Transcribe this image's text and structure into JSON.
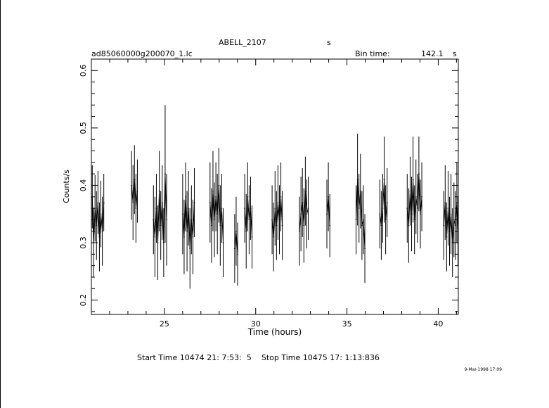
{
  "header": {
    "object_name": "ABELL_2107",
    "object_unit": "s",
    "file_name": "ad85060000g200070_1.lc",
    "bin_label": "Bin time:",
    "bin_value": "142.1",
    "bin_unit": "s"
  },
  "footer": {
    "time_range": "Start Time 10474 21: 7:53:  5    Stop Time 10475 17: 1:13:836",
    "timestamp": "9-Mar-1998 17:09"
  },
  "chart_data": {
    "type": "line",
    "title": "ABELL_2107",
    "xlabel": "Time (hours)",
    "ylabel": "Counts/s",
    "xlim": [
      21.0,
      41.1
    ],
    "ylim": [
      0.175,
      0.62
    ],
    "xticks": [
      25,
      30,
      35,
      40
    ],
    "xtick_labels": [
      "25",
      "30",
      "35",
      "40"
    ],
    "yticks": [
      0.2,
      0.3,
      0.4,
      0.5,
      0.6
    ],
    "ytick_labels": [
      "0.2",
      "0.3",
      "0.4",
      "0.5",
      "0.6"
    ],
    "grid": false,
    "series": [
      {
        "segments": [
          {
            "x": [
              21.05,
              21.12,
              21.2,
              21.28,
              21.36,
              21.44,
              21.52,
              21.6,
              21.68
            ],
            "y": [
              0.38,
              0.3,
              0.36,
              0.33,
              0.37,
              0.31,
              0.35,
              0.32,
              0.37
            ],
            "err": [
              0.055,
              0.06,
              0.058,
              0.06,
              0.055,
              0.06,
              0.058,
              0.06,
              0.05
            ]
          },
          {
            "x": [
              23.2,
              23.28,
              23.36,
              23.44,
              23.52
            ],
            "y": [
              0.4,
              0.37,
              0.41,
              0.36,
              0.39
            ],
            "err": [
              0.06,
              0.065,
              0.06,
              0.06,
              0.055
            ]
          },
          {
            "x": [
              24.4,
              24.48,
              24.56,
              24.64,
              24.72,
              24.8,
              24.88,
              24.96,
              25.04,
              25.12
            ],
            "y": [
              0.34,
              0.31,
              0.36,
              0.3,
              0.39,
              0.33,
              0.37,
              0.3,
              0.42,
              0.34
            ],
            "err": [
              0.06,
              0.07,
              0.06,
              0.065,
              0.07,
              0.06,
              0.065,
              0.06,
              0.12,
              0.08
            ]
          },
          {
            "x": [
              26.0,
              26.08,
              26.16,
              26.24,
              26.32,
              26.4,
              26.48,
              26.56,
              26.64
            ],
            "y": [
              0.35,
              0.31,
              0.38,
              0.32,
              0.36,
              0.29,
              0.34,
              0.31,
              0.37
            ],
            "err": [
              0.07,
              0.065,
              0.06,
              0.07,
              0.065,
              0.07,
              0.06,
              0.065,
              0.06
            ]
          },
          {
            "x": [
              27.5,
              27.58,
              27.66,
              27.74,
              27.82,
              27.9,
              27.98,
              28.06,
              28.14,
              28.22
            ],
            "y": [
              0.37,
              0.33,
              0.39,
              0.34,
              0.38,
              0.35,
              0.4,
              0.33,
              0.36,
              0.3
            ],
            "err": [
              0.07,
              0.065,
              0.07,
              0.065,
              0.06,
              0.07,
              0.065,
              0.07,
              0.06,
              0.06
            ]
          },
          {
            "x": [
              28.85,
              28.93,
              29.01
            ],
            "y": [
              0.29,
              0.32,
              0.28
            ],
            "err": [
              0.06,
              0.06,
              0.055
            ]
          },
          {
            "x": [
              29.4,
              29.48,
              29.56,
              29.64,
              29.72,
              29.8
            ],
            "y": [
              0.36,
              0.32,
              0.38,
              0.34,
              0.36,
              0.31
            ],
            "err": [
              0.06,
              0.065,
              0.06,
              0.06,
              0.055,
              0.055
            ]
          },
          {
            "x": [
              30.9,
              30.98,
              31.06,
              31.14,
              31.22,
              31.3,
              31.38,
              31.46
            ],
            "y": [
              0.34,
              0.31,
              0.36,
              0.33,
              0.37,
              0.34,
              0.38,
              0.33
            ],
            "err": [
              0.06,
              0.06,
              0.065,
              0.06,
              0.065,
              0.06,
              0.06,
              0.06
            ]
          },
          {
            "x": [
              32.4,
              32.48,
              32.56,
              32.64,
              32.72,
              32.8,
              32.88
            ],
            "y": [
              0.32,
              0.35,
              0.37,
              0.33,
              0.39,
              0.35,
              0.36
            ],
            "err": [
              0.06,
              0.065,
              0.06,
              0.065,
              0.06,
              0.06,
              0.055
            ]
          },
          {
            "x": [
              33.9,
              33.98,
              34.06
            ],
            "y": [
              0.35,
              0.38,
              0.33
            ],
            "err": [
              0.06,
              0.06,
              0.055
            ]
          },
          {
            "x": [
              35.5,
              35.58,
              35.66,
              35.74,
              35.82,
              35.9,
              35.98
            ],
            "y": [
              0.34,
              0.41,
              0.36,
              0.39,
              0.33,
              0.34,
              0.29
            ],
            "err": [
              0.06,
              0.08,
              0.06,
              0.065,
              0.06,
              0.06,
              0.06
            ]
          },
          {
            "x": [
              36.8,
              36.88,
              36.96,
              37.04,
              37.12,
              37.2
            ],
            "y": [
              0.35,
              0.33,
              0.36,
              0.41,
              0.34,
              0.37
            ],
            "err": [
              0.06,
              0.06,
              0.06,
              0.075,
              0.06,
              0.06
            ]
          },
          {
            "x": [
              38.3,
              38.38,
              38.46,
              38.54,
              38.62,
              38.7,
              38.78,
              38.86,
              38.94,
              39.02,
              39.1
            ],
            "y": [
              0.36,
              0.33,
              0.39,
              0.35,
              0.41,
              0.34,
              0.38,
              0.36,
              0.42,
              0.35,
              0.38
            ],
            "err": [
              0.06,
              0.065,
              0.06,
              0.065,
              0.075,
              0.06,
              0.065,
              0.06,
              0.065,
              0.06,
              0.06
            ]
          },
          {
            "x": [
              40.3,
              40.38,
              40.46,
              40.54,
              40.62,
              40.7,
              40.78,
              40.86,
              40.94,
              41.02,
              41.08
            ],
            "y": [
              0.33,
              0.37,
              0.31,
              0.36,
              0.32,
              0.35,
              0.3,
              0.34,
              0.33,
              0.37,
              0.32
            ],
            "err": [
              0.06,
              0.065,
              0.06,
              0.065,
              0.06,
              0.07,
              0.06,
              0.065,
              0.06,
              0.07,
              0.06
            ]
          }
        ]
      }
    ]
  }
}
